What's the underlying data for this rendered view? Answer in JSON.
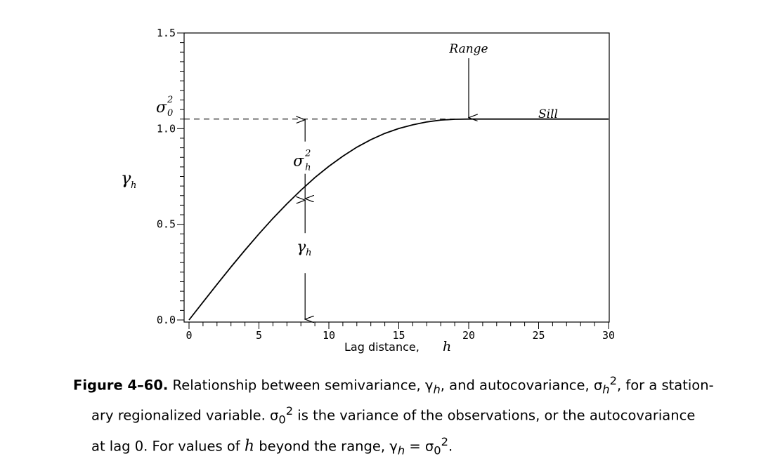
{
  "chart_data": {
    "type": "line",
    "xlabel": "Lag distance,",
    "xlabel_var": "h",
    "ylabel": "γ",
    "ylabel_sub": "h",
    "xlim": [
      0,
      30
    ],
    "ylim": [
      0,
      1.5
    ],
    "x_ticks": [
      0,
      5,
      10,
      15,
      20,
      25,
      30
    ],
    "x_tick_labels": [
      "0",
      "5",
      "10",
      "15",
      "20",
      "25",
      "30"
    ],
    "y_ticks": [
      0.0,
      0.5,
      1.0,
      1.5
    ],
    "y_tick_labels": [
      "0.0",
      "0.5",
      "1.0",
      "1.5"
    ],
    "grid": false,
    "series": [
      {
        "x": [
          0,
          1,
          2,
          3,
          4,
          5,
          6,
          7,
          8,
          9,
          10,
          11,
          12,
          13,
          14,
          15,
          16,
          17,
          18,
          19,
          20,
          22,
          24,
          26,
          28,
          30
        ],
        "y": [
          0.0,
          0.093,
          0.186,
          0.277,
          0.365,
          0.45,
          0.531,
          0.607,
          0.678,
          0.744,
          0.803,
          0.856,
          0.903,
          0.942,
          0.975,
          1.001,
          1.02,
          1.035,
          1.045,
          1.049,
          1.05,
          1.05,
          1.05,
          1.05,
          1.05,
          1.05
        ]
      }
    ],
    "sill_value": 1.05,
    "range_value": 20,
    "lag_marker_x": 8.3,
    "lag_marker_gamma": 0.63,
    "annotations": {
      "range": "Range",
      "sill": "Sill",
      "sigma0_base": "σ",
      "sigma0_sub": "0",
      "sigma0_sup": "2",
      "sigmah_base": "σ",
      "sigmah_sub": "h",
      "sigmah_sup": "2",
      "gammah_base": "γ",
      "gammah_sub": "h"
    }
  },
  "caption": {
    "label": "Figure 4–60.",
    "line1": " Relationship between semivariance, γ",
    "line1_sub": "h",
    "line1_b": ", and autocovariance, σ",
    "line1_sub2": "h",
    "line1_sup2": "2",
    "line1_c": ", for a station-",
    "line2_a": "ary regionalized variable.  σ",
    "line2_sub": "0",
    "line2_sup": "2",
    "line2_b": " is the variance of the observations, or the autocovariance",
    "line3_a": "at lag 0.  For values of ",
    "line3_h": "h",
    "line3_b": " beyond the range, γ",
    "line3_sub": "h",
    "line3_c": " = σ",
    "line3_sub2": "0",
    "line3_sup2": "2",
    "line3_d": "."
  }
}
